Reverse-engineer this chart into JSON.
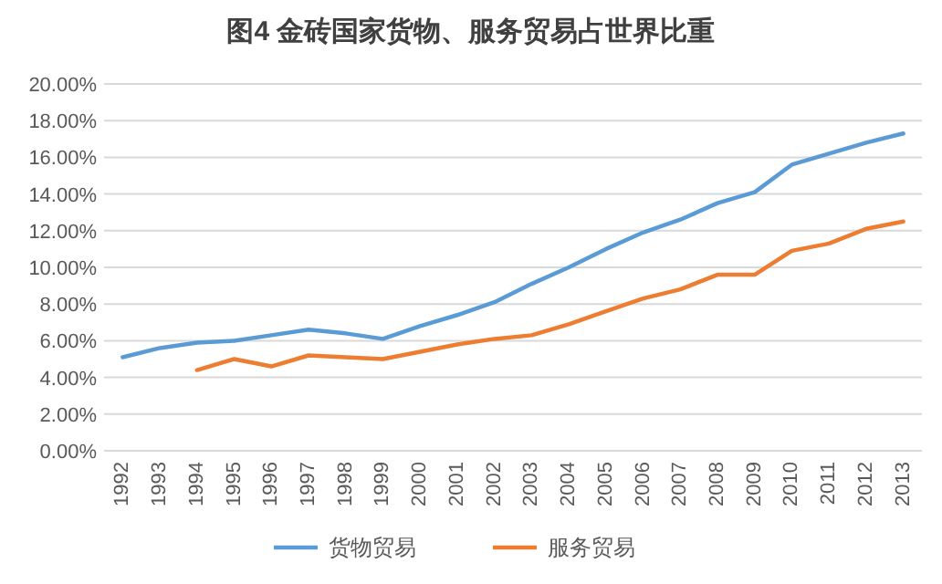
{
  "chart_data": {
    "type": "line",
    "title": "图4 金砖国家货物、服务贸易占世界比重",
    "categories": [
      "1992",
      "1993",
      "1994",
      "1995",
      "1996",
      "1997",
      "1998",
      "1999",
      "2000",
      "2001",
      "2002",
      "2003",
      "2004",
      "2005",
      "2006",
      "2007",
      "2008",
      "2009",
      "2010",
      "2011",
      "2012",
      "2013"
    ],
    "series": [
      {
        "name": "货物贸易",
        "color": "#5b9bd5",
        "values": [
          5.1,
          5.6,
          5.9,
          6.0,
          6.3,
          6.6,
          6.4,
          6.1,
          6.8,
          7.4,
          8.1,
          9.1,
          10.0,
          11.0,
          11.9,
          12.6,
          13.5,
          14.1,
          15.6,
          16.2,
          16.8,
          17.3
        ]
      },
      {
        "name": "服务贸易",
        "color": "#ed7d31",
        "values": [
          null,
          null,
          4.4,
          5.0,
          4.6,
          5.2,
          5.1,
          5.0,
          5.4,
          5.8,
          6.1,
          6.3,
          6.9,
          7.6,
          8.3,
          8.8,
          9.6,
          9.6,
          10.9,
          11.3,
          12.1,
          12.5
        ]
      }
    ],
    "ylim": [
      0,
      20
    ],
    "yticks": [
      {
        "value": 0,
        "label": "0.00%"
      },
      {
        "value": 2,
        "label": "2.00%"
      },
      {
        "value": 4,
        "label": "4.00%"
      },
      {
        "value": 6,
        "label": "6.00%"
      },
      {
        "value": 8,
        "label": "8.00%"
      },
      {
        "value": 10,
        "label": "10.00%"
      },
      {
        "value": 12,
        "label": "12.00%"
      },
      {
        "value": 14,
        "label": "14.00%"
      },
      {
        "value": 16,
        "label": "16.00%"
      },
      {
        "value": 18,
        "label": "18.00%"
      },
      {
        "value": 20,
        "label": "20.00%"
      }
    ],
    "grid": "y",
    "legend": "bottom",
    "marker": "none",
    "line_style": "solid"
  }
}
